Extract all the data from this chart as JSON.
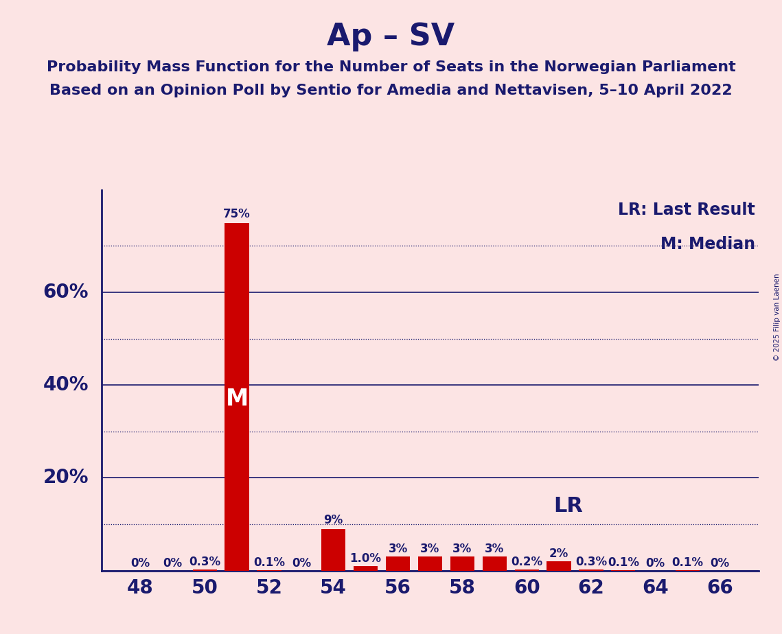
{
  "title": "Ap – SV",
  "subtitle1": "Probability Mass Function for the Number of Seats in the Norwegian Parliament",
  "subtitle2": "Based on an Opinion Poll by Sentio for Amedia and Nettavisen, 5–10 April 2022",
  "legend_lr": "LR: Last Result",
  "legend_m": "M: Median",
  "copyright": "© 2025 Filip van Laenen",
  "background_color": "#fce4e4",
  "bar_color": "#cc0000",
  "axis_color": "#1a1a6e",
  "text_color": "#1a1a6e",
  "seats": [
    48,
    49,
    50,
    51,
    52,
    53,
    54,
    55,
    56,
    57,
    58,
    59,
    60,
    61,
    62,
    63,
    64,
    65,
    66
  ],
  "values": [
    0.0,
    0.0,
    0.3,
    75.0,
    0.1,
    0.0,
    9.0,
    1.0,
    3.0,
    3.0,
    3.0,
    3.0,
    0.2,
    2.0,
    0.3,
    0.1,
    0.0,
    0.1,
    0.0
  ],
  "labels": [
    "0%",
    "0%",
    "0.3%",
    "75%",
    "0.1%",
    "0%",
    "9%",
    "1.0%",
    "3%",
    "3%",
    "3%",
    "3%",
    "0.2%",
    "2%",
    "0.3%",
    "0.1%",
    "0%",
    "0.1%",
    "0%"
  ],
  "median_seat": 51,
  "lr_seat": 61,
  "xticks": [
    48,
    50,
    52,
    54,
    56,
    58,
    60,
    62,
    64,
    66
  ],
  "ylim": [
    0,
    82
  ],
  "dotted_lines": [
    10,
    30,
    50,
    70
  ],
  "solid_lines": [
    20,
    40,
    60
  ],
  "title_fontsize": 32,
  "subtitle_fontsize": 16,
  "label_fontsize": 12,
  "tick_fontsize": 20,
  "legend_fontsize": 17,
  "m_label_fontsize": 24,
  "lr_label_fontsize": 22
}
